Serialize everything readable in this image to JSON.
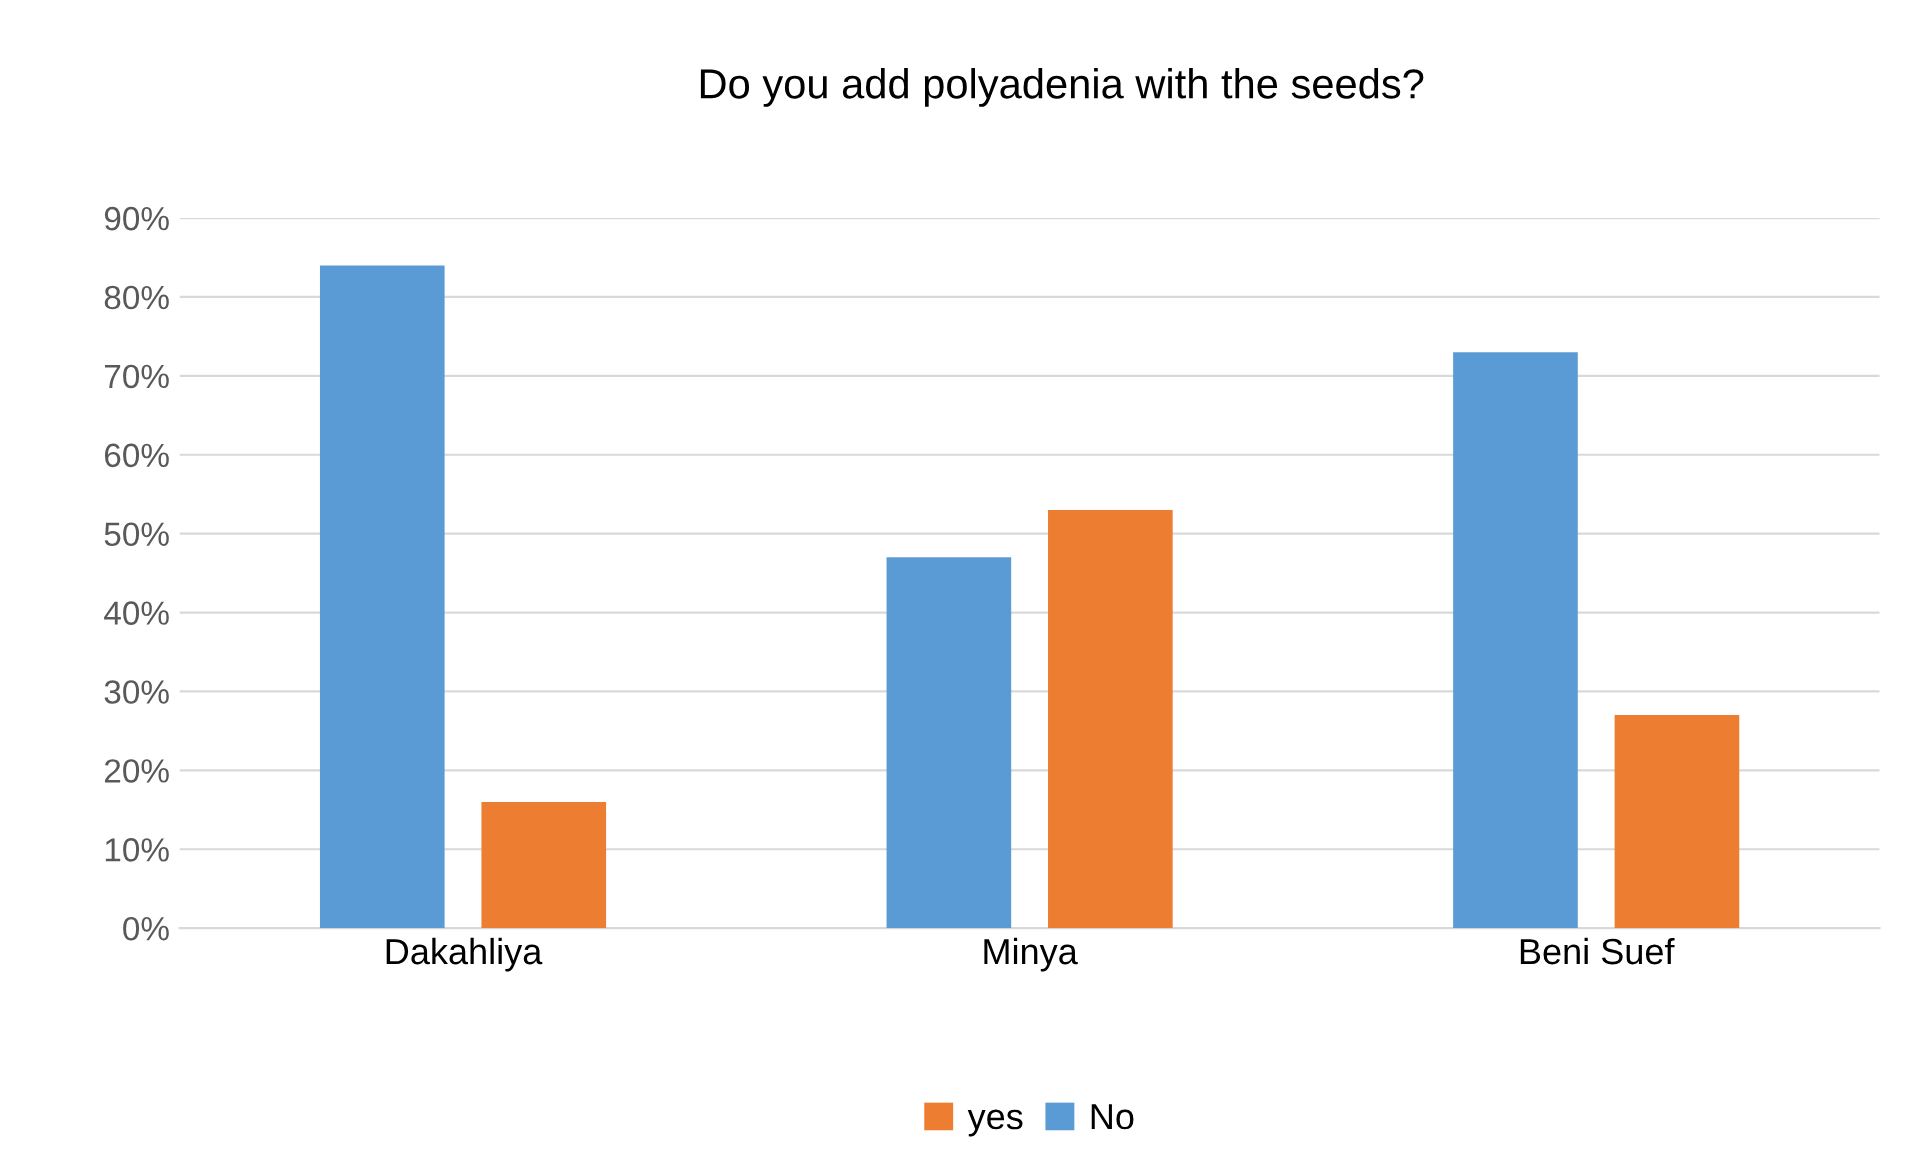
{
  "chart_data": {
    "type": "bar",
    "title": "Do you add polyadenia with the seeds?",
    "categories": [
      "Dakahliya",
      "Minya",
      "Beni Suef"
    ],
    "series": [
      {
        "name": "No",
        "color": "#5b9bd5",
        "values": [
          84,
          47,
          73
        ]
      },
      {
        "name": "yes",
        "color": "#ed7d31",
        "values": [
          16,
          53,
          27
        ]
      }
    ],
    "ylim": [
      0,
      90
    ],
    "yticks": [
      {
        "value": 0,
        "label": "0%"
      },
      {
        "value": 10,
        "label": "10%"
      },
      {
        "value": 20,
        "label": "20%"
      },
      {
        "value": 30,
        "label": "30%"
      },
      {
        "value": 40,
        "label": "40%"
      },
      {
        "value": 50,
        "label": "50%"
      },
      {
        "value": 60,
        "label": "60%"
      },
      {
        "value": 70,
        "label": "70%"
      },
      {
        "value": 80,
        "label": "80%"
      },
      {
        "value": 90,
        "label": "90%"
      }
    ],
    "grid": "y",
    "legend": "bottom"
  }
}
